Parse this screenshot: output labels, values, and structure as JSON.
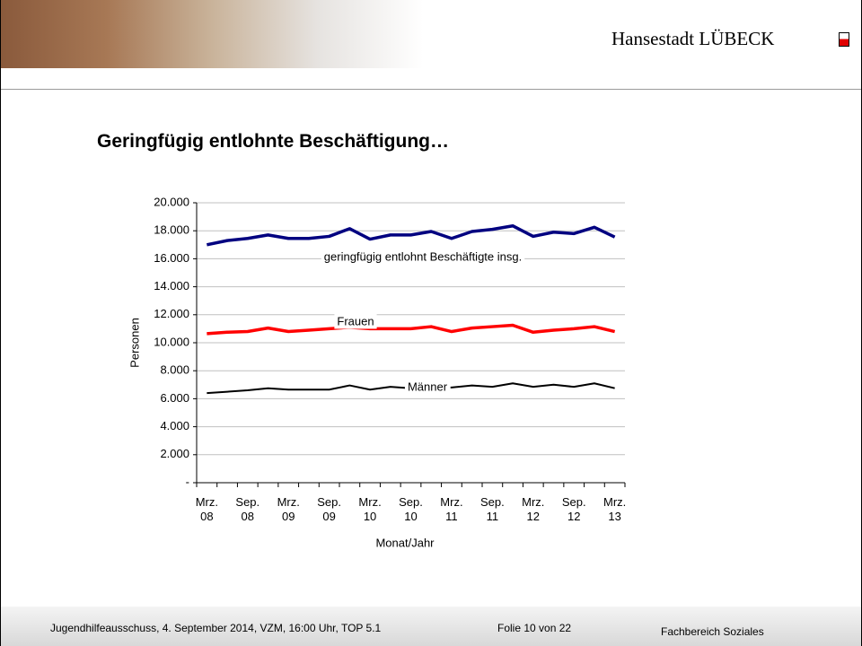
{
  "header": {
    "logo": "Hansestadt LÜBECK"
  },
  "chart_data": {
    "type": "line",
    "title": "Geringfügig entlohnte Beschäftigung…",
    "x_label": "Monat/Jahr",
    "y_label": "Personen",
    "categories": [
      "Mrz. 08",
      null,
      "Sep. 08",
      null,
      "Mrz. 09",
      null,
      "Sep. 09",
      null,
      "Mrz. 10",
      null,
      "Sep. 10",
      null,
      "Mrz. 11",
      null,
      "Sep. 11",
      null,
      "Mrz. 12",
      null,
      "Sep. 12",
      null,
      "Mrz. 13"
    ],
    "series": [
      {
        "name": "geringfügig entlohnt Beschäftigte insg.",
        "color": "#000080",
        "values": [
          17000,
          17300,
          17450,
          17700,
          17450,
          17450,
          17600,
          18150,
          17400,
          17700,
          17700,
          17950,
          17450,
          17950,
          18100,
          18350,
          17600,
          17900,
          17800,
          18250,
          17550
        ]
      },
      {
        "name": "Frauen",
        "color": "#ff0000",
        "values": [
          10650,
          10750,
          10800,
          11050,
          10800,
          10900,
          11000,
          11100,
          11000,
          11000,
          11000,
          11150,
          10800,
          11050,
          11150,
          11250,
          10750,
          10900,
          11000,
          11150,
          10800
        ]
      },
      {
        "name": "Männer",
        "color": "#000000",
        "values": [
          6400,
          6500,
          6600,
          6750,
          6650,
          6650,
          6650,
          6950,
          6650,
          6850,
          6750,
          6800,
          6800,
          6950,
          6850,
          7100,
          6850,
          7000,
          6850,
          7100,
          6750
        ]
      }
    ],
    "ylim": [
      0,
      20000
    ],
    "yticks": [
      {
        "value": 0,
        "label": "-"
      },
      {
        "value": 2000,
        "label": "2.000"
      },
      {
        "value": 4000,
        "label": "4.000"
      },
      {
        "value": 6000,
        "label": "6.000"
      },
      {
        "value": 8000,
        "label": "8.000"
      },
      {
        "value": 10000,
        "label": "10.000"
      },
      {
        "value": 12000,
        "label": "12.000"
      },
      {
        "value": 14000,
        "label": "14.000"
      },
      {
        "value": 16000,
        "label": "16.000"
      },
      {
        "value": 18000,
        "label": "18.000"
      },
      {
        "value": 20000,
        "label": "20.000"
      }
    ],
    "grid": true
  },
  "footer": {
    "meeting": "Jugendhilfeausschuss, 4. September 2014, VZM, 16:00 Uhr, TOP 5.1",
    "slide": "Folie 10 von 22",
    "department": "Fachbereich Soziales"
  }
}
